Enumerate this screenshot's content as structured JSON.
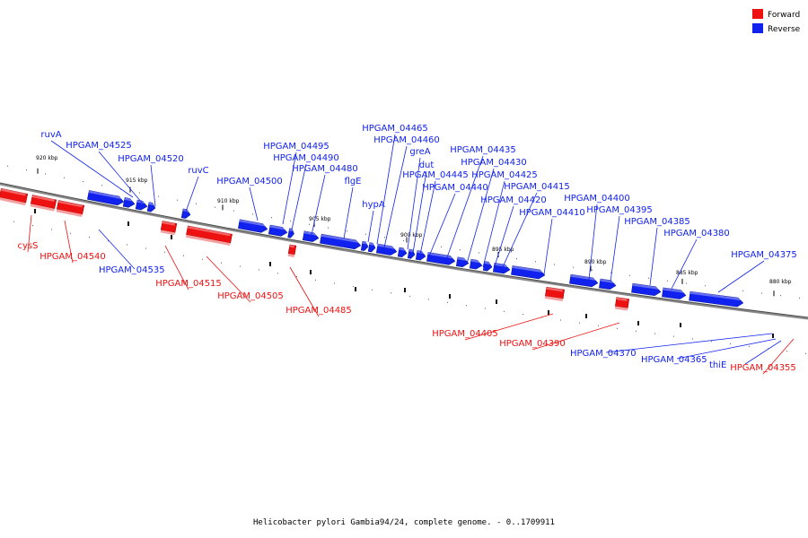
{
  "caption": "Helicobacter pylori Gambia94/24, complete genome. - 0..1709911",
  "legend": [
    {
      "label": "Forward",
      "color": "#ee1111"
    },
    {
      "label": "Reverse",
      "color": "#1122ee"
    }
  ],
  "colors": {
    "forward": "#ee1111",
    "reverse": "#1122ee",
    "backbone": "#888888"
  },
  "ticks": [
    {
      "label": "920 kbp"
    },
    {
      "label": "915 kbp"
    },
    {
      "label": "910 kbp"
    },
    {
      "label": "905 kbp"
    },
    {
      "label": "900 kbp"
    },
    {
      "label": "895 kbp"
    },
    {
      "label": "890 kbp"
    },
    {
      "label": "885 kbp"
    },
    {
      "label": "880 kbp"
    }
  ],
  "genes": [
    {
      "name": "ruvA",
      "strand": "reverse"
    },
    {
      "name": "HPGAM_04525",
      "strand": "reverse"
    },
    {
      "name": "HPGAM_04520",
      "strand": "reverse"
    },
    {
      "name": "ruvC",
      "strand": "reverse"
    },
    {
      "name": "HPGAM_04500",
      "strand": "reverse"
    },
    {
      "name": "HPGAM_04495",
      "strand": "reverse"
    },
    {
      "name": "HPGAM_04490",
      "strand": "reverse"
    },
    {
      "name": "HPGAM_04480",
      "strand": "reverse"
    },
    {
      "name": "flgE",
      "strand": "reverse"
    },
    {
      "name": "hypA",
      "strand": "reverse"
    },
    {
      "name": "HPGAM_04465",
      "strand": "reverse"
    },
    {
      "name": "HPGAM_04460",
      "strand": "reverse"
    },
    {
      "name": "greA",
      "strand": "reverse"
    },
    {
      "name": "dut",
      "strand": "reverse"
    },
    {
      "name": "HPGAM_04445",
      "strand": "reverse"
    },
    {
      "name": "HPGAM_04440",
      "strand": "reverse"
    },
    {
      "name": "HPGAM_04435",
      "strand": "reverse"
    },
    {
      "name": "HPGAM_04430",
      "strand": "reverse"
    },
    {
      "name": "HPGAM_04425",
      "strand": "reverse"
    },
    {
      "name": "HPGAM_04420",
      "strand": "reverse"
    },
    {
      "name": "HPGAM_04415",
      "strand": "reverse"
    },
    {
      "name": "HPGAM_04410",
      "strand": "reverse"
    },
    {
      "name": "HPGAM_04400",
      "strand": "reverse"
    },
    {
      "name": "HPGAM_04395",
      "strand": "reverse"
    },
    {
      "name": "HPGAM_04385",
      "strand": "reverse"
    },
    {
      "name": "HPGAM_04380",
      "strand": "reverse"
    },
    {
      "name": "HPGAM_04375",
      "strand": "reverse"
    },
    {
      "name": "HPGAM_04535",
      "strand": "reverse"
    },
    {
      "name": "HPGAM_04370",
      "strand": "reverse"
    },
    {
      "name": "HPGAM_04365",
      "strand": "reverse"
    },
    {
      "name": "thiE",
      "strand": "reverse"
    },
    {
      "name": "cysS",
      "strand": "forward"
    },
    {
      "name": "HPGAM_04540",
      "strand": "forward"
    },
    {
      "name": "HPGAM_04515",
      "strand": "forward"
    },
    {
      "name": "HPGAM_04505",
      "strand": "forward"
    },
    {
      "name": "HPGAM_04485",
      "strand": "forward"
    },
    {
      "name": "HPGAM_04405",
      "strand": "forward"
    },
    {
      "name": "HPGAM_04390",
      "strand": "forward"
    },
    {
      "name": "HPGAM_04355",
      "strand": "forward"
    }
  ]
}
